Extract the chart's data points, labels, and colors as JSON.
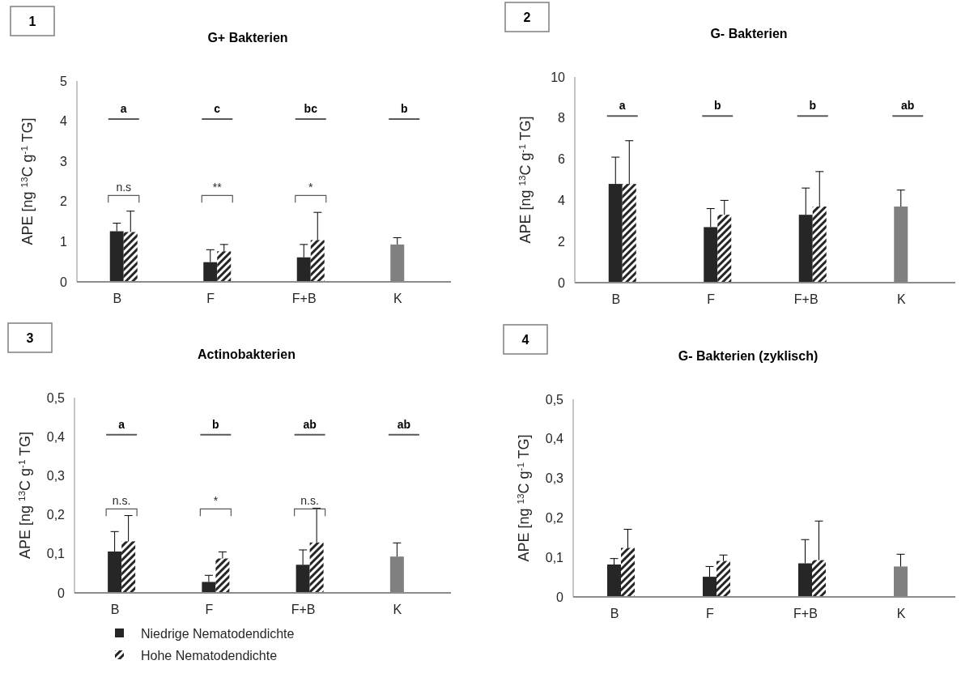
{
  "chart_data": [
    {
      "type": "bar",
      "title": "G+ Bakterien",
      "ylabel": "APE [ng $^{13}$C g$^{-1}$ TG]",
      "categories": [
        "B",
        "F",
        "F+B",
        "K"
      ],
      "ylim": [
        0,
        5
      ],
      "yticks": [
        0,
        1,
        2,
        3,
        4,
        5
      ],
      "series": [
        {
          "colors": [
            "#262626",
            "#262626",
            "#262626",
            "#808080"
          ],
          "values": [
            1.26,
            0.49,
            0.61,
            0.93
          ],
          "errors": [
            [
              1.26,
              1.46
            ],
            [
              0.49,
              0.8
            ],
            [
              0.61,
              0.93
            ],
            [
              0.93,
              1.1
            ]
          ]
        },
        {
          "color": "#262626",
          "values": [
            1.24,
            0.76,
            1.04,
            null
          ],
          "errors": [
            [
              1.24,
              1.76
            ],
            [
              0.76,
              0.93
            ],
            [
              1.04,
              1.73
            ],
            null
          ]
        }
      ],
      "annotations": [
        "1",
        "a",
        "c",
        "bc",
        "b",
        "n.s",
        "**",
        "*"
      ]
    },
    {
      "type": "bar",
      "title": "G- Bakterien",
      "ylabel": "APE [ng $^{13}$C g$^{-1}$ TG]",
      "categories": [
        "B",
        "F",
        "F+B",
        "K"
      ],
      "ylim": [
        0,
        10
      ],
      "yticks": [
        0,
        2,
        4,
        6,
        8,
        10
      ],
      "series": [
        {
          "colors": [
            "#262626",
            "#262626",
            "#262626",
            "#808080"
          ],
          "values": [
            4.8,
            2.7,
            3.3,
            3.7
          ],
          "errors": [
            [
              4.8,
              6.1
            ],
            [
              2.7,
              3.6
            ],
            [
              3.3,
              4.6
            ],
            [
              3.7,
              4.5
            ]
          ]
        },
        {
          "color": "#262626",
          "values": [
            4.8,
            3.3,
            3.7,
            null
          ],
          "errors": [
            [
              4.8,
              6.9
            ],
            [
              3.3,
              4.0
            ],
            [
              3.7,
              5.4
            ],
            null
          ]
        }
      ],
      "annotations": [
        "2",
        "a",
        "b",
        "b",
        "ab"
      ]
    },
    {
      "type": "bar",
      "title": "Actinobakterien",
      "ylabel": "APE [ng $^{13}$C g$^{-1}$ TG]",
      "categories": [
        "B",
        "F",
        "F+B",
        "K"
      ],
      "ylim": [
        0,
        0.5
      ],
      "yticks": [
        0,
        {
          "value": 0.1,
          "label": "0,1"
        },
        {
          "value": 0.2,
          "label": "0,2"
        },
        {
          "value": 0.3,
          "label": "0,3"
        },
        {
          "value": 0.4,
          "label": "0,4"
        },
        {
          "value": 0.5,
          "label": "0,5"
        }
      ],
      "legend": "bottom",
      "series": [
        {
          "name": "Niedrige Nematodendichte",
          "colors": [
            "#262626",
            "#262626",
            "#262626",
            "#808080"
          ],
          "values": [
            0.106,
            0.028,
            0.072,
            0.093
          ],
          "errors": [
            [
              0.106,
              0.157
            ],
            [
              0.028,
              0.045
            ],
            [
              0.072,
              0.11
            ],
            [
              0.093,
              0.128
            ]
          ]
        },
        {
          "name": "Hohe Nematodendichte",
          "color": "#262626",
          "values": [
            0.132,
            0.088,
            0.129,
            null
          ],
          "errors": [
            [
              0.132,
              0.198
            ],
            [
              0.088,
              0.105
            ],
            [
              0.129,
              0.217
            ],
            null
          ]
        }
      ],
      "annotations": [
        "3",
        "a",
        "b",
        "ab",
        "ab",
        "n.s.",
        "*",
        "n.s."
      ]
    },
    {
      "type": "bar",
      "title": "G- Bakterien (zyklisch)",
      "ylabel": "APE [ng $^{13}$C g$^{-1}$ TG]",
      "categories": [
        "B",
        "F",
        "F+B",
        "K"
      ],
      "ylim": [
        0,
        0.5
      ],
      "yticks": [
        0,
        {
          "value": 0.1,
          "label": "0,1"
        },
        {
          "value": 0.2,
          "label": "0,2"
        },
        {
          "value": 0.3,
          "label": "0,3"
        },
        {
          "value": 0.4,
          "label": "0,4"
        },
        {
          "value": 0.5,
          "label": "0,5"
        }
      ],
      "series": [
        {
          "colors": [
            "#262626",
            "#262626",
            "#262626",
            "#808080"
          ],
          "values": [
            0.082,
            0.051,
            0.085,
            0.077
          ],
          "errors": [
            [
              0.082,
              0.097
            ],
            [
              0.051,
              0.077
            ],
            [
              0.085,
              0.145
            ],
            [
              0.077,
              0.108
            ]
          ]
        },
        {
          "color": "#262626",
          "values": [
            0.124,
            0.091,
            0.093,
            null
          ],
          "errors": [
            [
              0.124,
              0.171
            ],
            [
              0.091,
              0.106
            ],
            [
              0.093,
              0.192
            ],
            null
          ]
        }
      ],
      "annotations": [
        "4"
      ]
    }
  ]
}
